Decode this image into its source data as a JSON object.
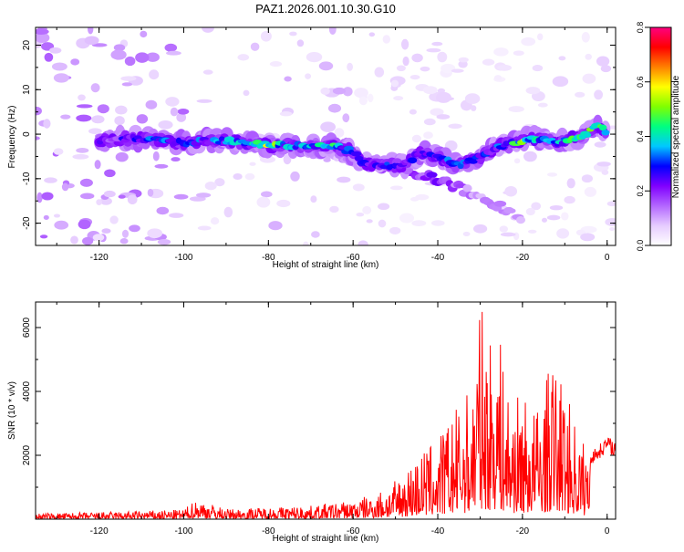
{
  "title": "PAZ1.2026.001.10.30.G10",
  "chart_data": [
    {
      "type": "heatmap",
      "panel": "top",
      "title": "PAZ1.2026.001.10.30.G10",
      "xlabel": "Height of straight line (km)",
      "ylabel": "Frequency (Hz)",
      "xlim": [
        -135,
        2
      ],
      "ylim": [
        -25,
        24
      ],
      "xticks": [
        "-120",
        "-100",
        "-80",
        "-60",
        "-40",
        "-20",
        "0"
      ],
      "yticks": [
        "20",
        "10",
        "0",
        "-10",
        "-20"
      ],
      "colorbar": {
        "label": "Normalized spectral amplitude",
        "range": [
          0.0,
          0.8
        ],
        "ticks": [
          "0.0",
          "0.2",
          "0.4",
          "0.6",
          "0.8"
        ],
        "colors": [
          "#ffffff",
          "#e6ccff",
          "#b366ff",
          "#8000ff",
          "#0000ff",
          "#00c8ff",
          "#00ff80",
          "#80ff00",
          "#ffff00",
          "#ff8000",
          "#ff0000",
          "#ff0080"
        ]
      },
      "main_ridge": [
        {
          "x": -120,
          "y": -1.5,
          "a": 0.22
        },
        {
          "x": -115,
          "y": -1,
          "a": 0.25
        },
        {
          "x": -110,
          "y": -1,
          "a": 0.3
        },
        {
          "x": -105,
          "y": -1.5,
          "a": 0.35
        },
        {
          "x": -100,
          "y": -2,
          "a": 0.3
        },
        {
          "x": -95,
          "y": -1.5,
          "a": 0.32
        },
        {
          "x": -90,
          "y": -1.5,
          "a": 0.35
        },
        {
          "x": -85,
          "y": -2,
          "a": 0.38
        },
        {
          "x": -80,
          "y": -2.5,
          "a": 0.55
        },
        {
          "x": -75,
          "y": -2.5,
          "a": 0.35
        },
        {
          "x": -70,
          "y": -2.5,
          "a": 0.38
        },
        {
          "x": -65,
          "y": -2.5,
          "a": 0.45
        },
        {
          "x": -60,
          "y": -4,
          "a": 0.3
        },
        {
          "x": -57,
          "y": -7,
          "a": 0.3
        },
        {
          "x": -52,
          "y": -7,
          "a": 0.32
        },
        {
          "x": -48,
          "y": -7,
          "a": 0.3
        },
        {
          "x": -44,
          "y": -4,
          "a": 0.28
        },
        {
          "x": -40,
          "y": -5,
          "a": 0.3
        },
        {
          "x": -36,
          "y": -7,
          "a": 0.35
        },
        {
          "x": -32,
          "y": -6,
          "a": 0.3
        },
        {
          "x": -28,
          "y": -4,
          "a": 0.3
        },
        {
          "x": -24,
          "y": -2,
          "a": 0.35
        },
        {
          "x": -20,
          "y": -1.5,
          "a": 0.55
        },
        {
          "x": -16,
          "y": -1,
          "a": 0.4
        },
        {
          "x": -12,
          "y": -2,
          "a": 0.35
        },
        {
          "x": -8,
          "y": -1,
          "a": 0.45
        },
        {
          "x": -5,
          "y": 0,
          "a": 0.55
        },
        {
          "x": -2,
          "y": 2,
          "a": 0.45
        },
        {
          "x": 0,
          "y": 0,
          "a": 0.55
        }
      ],
      "branch_ridge": [
        {
          "x": -75,
          "y": -3,
          "a": 0.15
        },
        {
          "x": -65,
          "y": -5,
          "a": 0.12
        },
        {
          "x": -55,
          "y": -7,
          "a": 0.15
        },
        {
          "x": -45,
          "y": -9,
          "a": 0.2
        },
        {
          "x": -40,
          "y": -10,
          "a": 0.22
        },
        {
          "x": -35,
          "y": -12,
          "a": 0.15
        },
        {
          "x": -28,
          "y": -15,
          "a": 0.12
        },
        {
          "x": -20,
          "y": -19,
          "a": 0.1
        }
      ]
    },
    {
      "type": "line",
      "panel": "bottom",
      "xlabel": "Height of straight line (km)",
      "ylabel": "SNR (10 * v/v)",
      "xlim": [
        -135,
        2
      ],
      "ylim": [
        0,
        6800
      ],
      "xticks": [
        "-120",
        "-100",
        "-80",
        "-60",
        "-40",
        "-20",
        "0"
      ],
      "yticks": [
        "2000",
        "4000",
        "6000"
      ],
      "color": "#ff0000",
      "envelope": [
        {
          "x": -135,
          "y": 180
        },
        {
          "x": -120,
          "y": 220
        },
        {
          "x": -100,
          "y": 300
        },
        {
          "x": -97,
          "y": 650
        },
        {
          "x": -90,
          "y": 320
        },
        {
          "x": -80,
          "y": 380
        },
        {
          "x": -70,
          "y": 420
        },
        {
          "x": -60,
          "y": 600
        },
        {
          "x": -55,
          "y": 800
        },
        {
          "x": -50,
          "y": 1200
        },
        {
          "x": -45,
          "y": 2000
        },
        {
          "x": -40,
          "y": 2600
        },
        {
          "x": -35,
          "y": 3600
        },
        {
          "x": -32,
          "y": 4200
        },
        {
          "x": -30,
          "y": 6800
        },
        {
          "x": -28,
          "y": 5600
        },
        {
          "x": -26,
          "y": 6400
        },
        {
          "x": -24,
          "y": 4200
        },
        {
          "x": -22,
          "y": 3800
        },
        {
          "x": -20,
          "y": 4000
        },
        {
          "x": -18,
          "y": 3500
        },
        {
          "x": -16,
          "y": 3700
        },
        {
          "x": -13,
          "y": 5000
        },
        {
          "x": -10,
          "y": 4200
        },
        {
          "x": -8,
          "y": 3300
        },
        {
          "x": -6,
          "y": 2600
        },
        {
          "x": -4,
          "y": 2000
        },
        {
          "x": -2,
          "y": 2200
        },
        {
          "x": 0,
          "y": 2500
        },
        {
          "x": 2,
          "y": 2300
        }
      ]
    }
  ]
}
